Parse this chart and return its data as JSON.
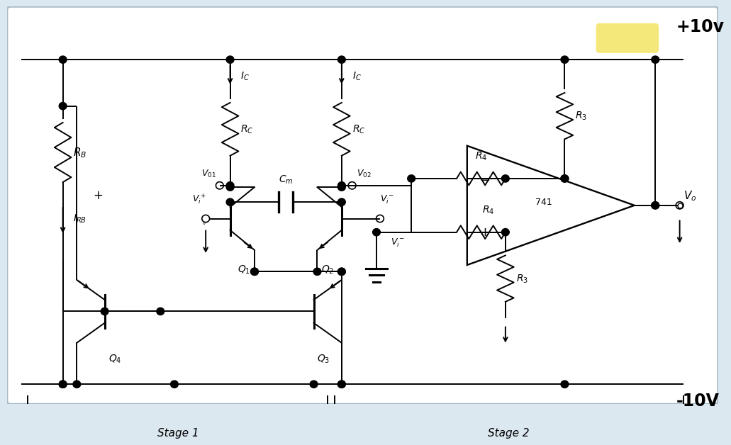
{
  "bg_color": "#dce8f0",
  "inner_bg": "#ffffff",
  "title_plus": "+10v",
  "title_minus": "-10V",
  "stage1_label": "Stage 1",
  "stage2_label": "Stage 2",
  "opamp_label": "741",
  "highlight_color": "#f5e87a"
}
